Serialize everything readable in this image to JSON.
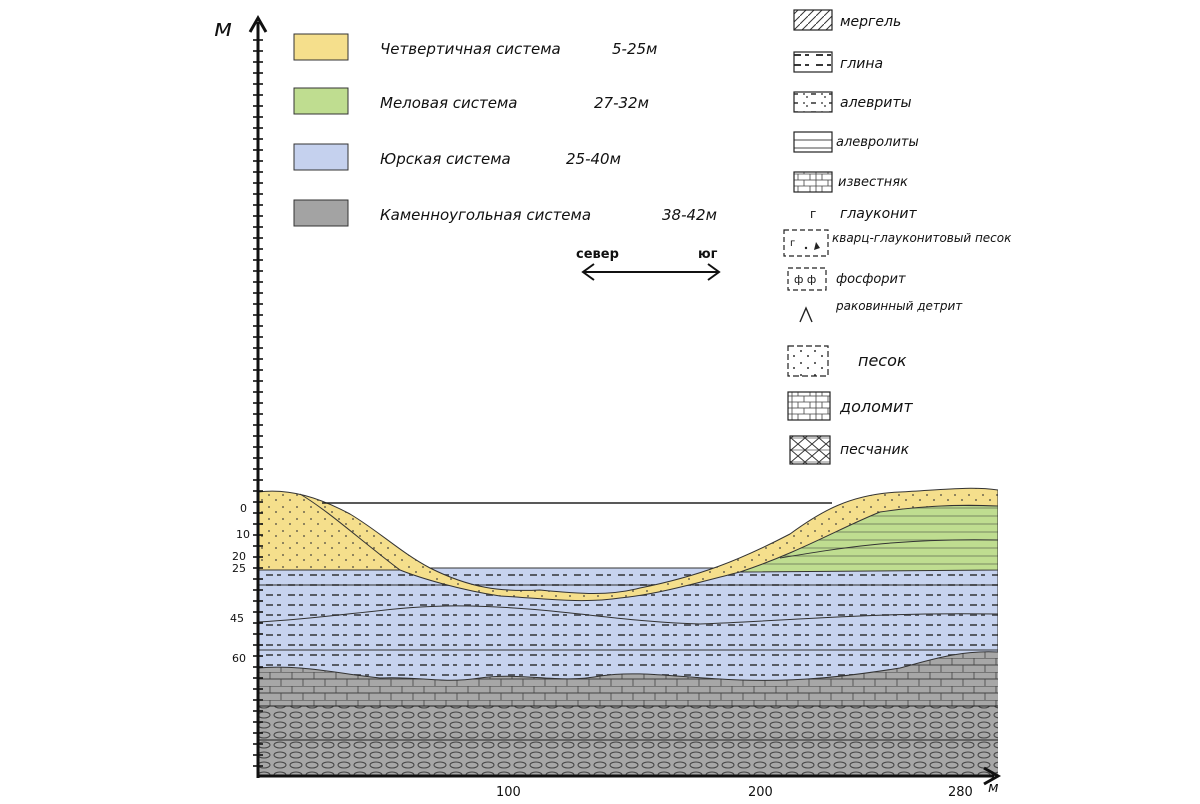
{
  "axes": {
    "y_label": "м",
    "x_label": "м",
    "y_ticks": [
      "0",
      "10",
      "20",
      "25",
      "45",
      "60"
    ],
    "x_ticks": [
      "100",
      "200",
      "280"
    ]
  },
  "legend_systems": [
    {
      "name": "Четвертичная система",
      "range": "5-25м",
      "color": "#f5df8c"
    },
    {
      "name": "Меловая система",
      "range": "27-32м",
      "color": "#bddc8e"
    },
    {
      "name": "Юрская система",
      "range": "25-40м",
      "color": "#c5d1ee"
    },
    {
      "name": "Каменноугольная система",
      "range": "38-42м",
      "color": "#a3a3a3"
    }
  ],
  "direction": {
    "left": "север",
    "right": "юг"
  },
  "lithology": [
    {
      "label": "мергель",
      "pattern": "marl"
    },
    {
      "label": "глина",
      "pattern": "clay"
    },
    {
      "label": "алевриты",
      "pattern": "silt"
    },
    {
      "label": "алевролиты",
      "pattern": "siltstone"
    },
    {
      "label": "известняк",
      "pattern": "limestone"
    },
    {
      "label": "глауконит",
      "pattern": "glauconite"
    },
    {
      "label": "кварц-глауконитовый песок",
      "pattern": "quartz-glauconite-sand"
    },
    {
      "label": "фосфорит",
      "pattern": "phosphorite"
    },
    {
      "label": "раковинный детрит",
      "pattern": "shell-detritus"
    },
    {
      "label": "песок",
      "pattern": "sand"
    },
    {
      "label": "доломит",
      "pattern": "dolomite"
    },
    {
      "label": "песчаник",
      "pattern": "sandstone"
    }
  ]
}
